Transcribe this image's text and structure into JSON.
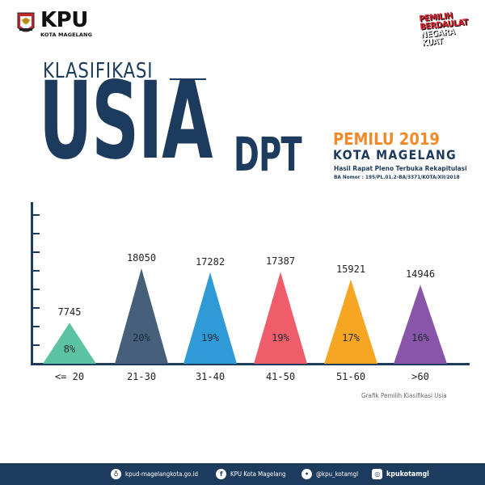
{
  "header": {
    "logo_title": "KPU",
    "logo_subtitle": "KOTA MAGELANG",
    "slogan": [
      "PEMILIH",
      "BERDAULAT",
      "NEGARA",
      "KUAT"
    ]
  },
  "title": {
    "klasifikasi": "KLASIFIKASI",
    "usia": "USIA",
    "dpt": "DPT",
    "pemilu": "PEMILU 2019",
    "kota": "KOTA MAGELANG",
    "hasil": "Hasil Rapat Pleno Terbuka Rekapitulasi",
    "ba_nomor": "BA Nomor : 195/PL.01.2-BA/3371/KOTA/XII/2018"
  },
  "chart_data": {
    "type": "bar",
    "style": "triangle",
    "title": "Grafik Pemilih Klasifikasi Usia",
    "xlabel": "",
    "ylabel": "",
    "categories": [
      "<= 20",
      "21-30",
      "31-40",
      "41-50",
      "51-60",
      ">60"
    ],
    "values": [
      7745,
      18050,
      17282,
      17387,
      15921,
      14946
    ],
    "percentages": [
      "8%",
      "20%",
      "19%",
      "19%",
      "17%",
      "16%"
    ],
    "colors": [
      "#5cc3a2",
      "#46607c",
      "#2e9bd6",
      "#ef5d6b",
      "#f6a623",
      "#8955a8"
    ],
    "y_ticks": 8,
    "y_tick_labels": false,
    "grid": false,
    "legend": "none"
  },
  "caption": "Grafik Pemilih Klasifikasi Usia",
  "footer": {
    "website": "kpud-magelangkota.go.id",
    "facebook": "KPU Kota Magelang",
    "twitter": "@kpu_kotamgl",
    "instagram": "kpukotamgl"
  },
  "colors": {
    "navy": "#1d3b5c",
    "orange": "#f5892a"
  }
}
